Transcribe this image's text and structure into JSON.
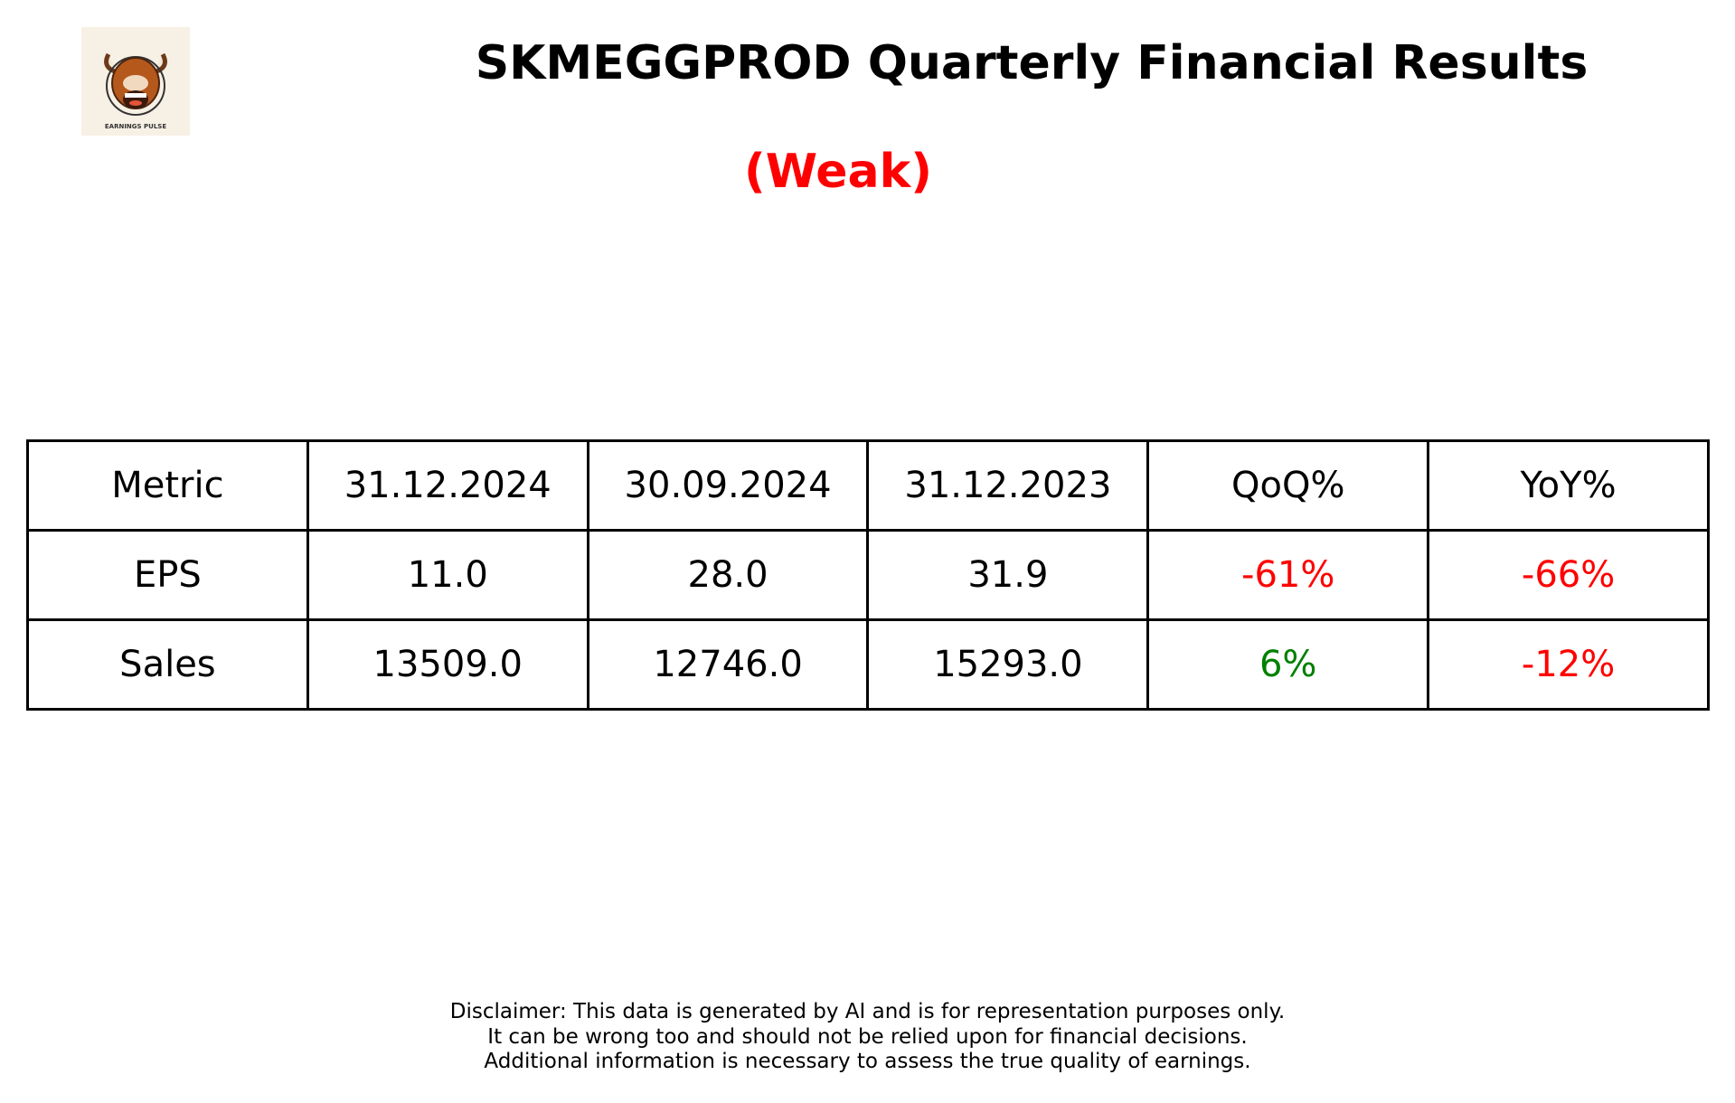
{
  "logo": {
    "text": "EARNINGS PULSE",
    "icon": "bull-mascot-icon"
  },
  "title": "SKMEGGPROD Quarterly Financial Results",
  "verdict": {
    "text": "(Weak)",
    "color": "#ff0000"
  },
  "chart_data": {
    "type": "table",
    "columns": [
      "Metric",
      "31.12.2024",
      "30.09.2024",
      "31.12.2023",
      "QoQ%",
      "YoY%"
    ],
    "rows": [
      {
        "metric": "EPS",
        "v1": "11.0",
        "v2": "28.0",
        "v3": "31.9",
        "qoq": "-61%",
        "yoy": "-66%",
        "qoq_color": "#ff0000",
        "yoy_color": "#ff0000"
      },
      {
        "metric": "Sales",
        "v1": "13509.0",
        "v2": "12746.0",
        "v3": "15293.0",
        "qoq": "6%",
        "yoy": "-12%",
        "qoq_color": "#008000",
        "yoy_color": "#ff0000"
      }
    ]
  },
  "disclaimer": [
    "Disclaimer: This data is generated by AI and is for representation purposes only.",
    "It can be wrong too and should not be relied upon for financial decisions.",
    "Additional information is necessary to assess the true quality of earnings."
  ]
}
